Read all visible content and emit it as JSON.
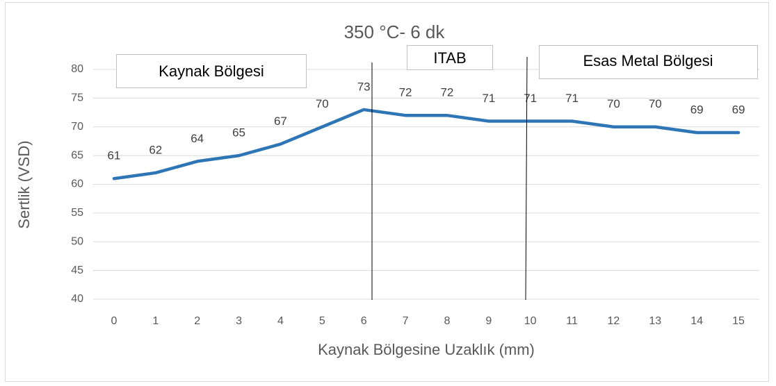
{
  "chart_data": {
    "type": "line",
    "title": "350 °C- 6 dk",
    "x_label": "Kaynak Bölgesine Uzaklık (mm)",
    "y_label": "Sertlik (VSD)",
    "categories": [
      "0",
      "1",
      "2",
      "3",
      "4",
      "5",
      "6",
      "7",
      "8",
      "9",
      "10",
      "11",
      "12",
      "13",
      "14",
      "15"
    ],
    "series": [
      {
        "color": "#2e75b6",
        "values": [
          61,
          62,
          64,
          65,
          67,
          70,
          73,
          72,
          72,
          71,
          71,
          71,
          70,
          70,
          69,
          69
        ]
      }
    ],
    "ylim": [
      40,
      80
    ],
    "yticks": [
      40,
      45,
      50,
      55,
      60,
      65,
      70,
      75,
      80
    ],
    "grid": true,
    "annotations": [
      "Kaynak Bölgesi",
      "ITAB",
      "Esas Metal Bölgesi"
    ]
  }
}
